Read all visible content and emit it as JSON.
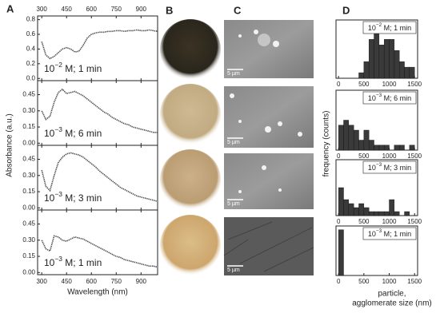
{
  "panel_labels": [
    "A",
    "B",
    "C",
    "D"
  ],
  "scale_bars": [
    "5 µm",
    "5 µm",
    "5 µm",
    "5 µm"
  ],
  "chart_data": [
    {
      "type": "line",
      "annotation": {
        "base": "10",
        "exponent": "−2",
        "text": " M; 1 min"
      },
      "ylabel": "Absorbance (a.u.)",
      "top_tick_labels": true,
      "color": "#555555",
      "x": [
        300,
        325,
        350,
        375,
        400,
        425,
        450,
        475,
        500,
        525,
        550,
        575,
        600,
        625,
        650,
        675,
        700,
        725,
        750,
        775,
        800,
        825,
        850,
        875,
        900,
        925,
        950,
        975,
        1000
      ],
      "values": [
        0.5,
        0.32,
        0.27,
        0.3,
        0.35,
        0.4,
        0.42,
        0.4,
        0.36,
        0.37,
        0.45,
        0.55,
        0.6,
        0.62,
        0.63,
        0.63,
        0.64,
        0.64,
        0.65,
        0.65,
        0.64,
        0.65,
        0.65,
        0.66,
        0.65,
        0.65,
        0.66,
        0.65,
        0.64
      ],
      "xlim": [
        275,
        1000
      ],
      "xticks": [
        300,
        450,
        600,
        750,
        900
      ],
      "ylim": [
        -0.03,
        0.85
      ],
      "yticks": [
        {
          "value": 0,
          "label": "0.0"
        },
        {
          "value": 0.2,
          "label": "0.2"
        },
        {
          "value": 0.4,
          "label": "0.4"
        },
        {
          "value": 0.6,
          "label": "0.6"
        },
        {
          "value": 0.8,
          "label": "0.8"
        }
      ]
    },
    {
      "type": "line",
      "annotation": {
        "base": "10",
        "exponent": "−3",
        "text": " M; 6 min"
      },
      "color": "#555555",
      "x": [
        300,
        325,
        350,
        375,
        400,
        425,
        450,
        475,
        500,
        525,
        550,
        575,
        600,
        625,
        650,
        675,
        700,
        725,
        750,
        775,
        800,
        825,
        850,
        875,
        900,
        925,
        950,
        975,
        1000
      ],
      "values": [
        0.3,
        0.22,
        0.25,
        0.38,
        0.47,
        0.5,
        0.46,
        0.47,
        0.48,
        0.46,
        0.44,
        0.41,
        0.38,
        0.35,
        0.32,
        0.29,
        0.27,
        0.24,
        0.22,
        0.2,
        0.18,
        0.17,
        0.15,
        0.14,
        0.13,
        0.12,
        0.11,
        0.1,
        0.1
      ],
      "xlim": [
        275,
        1000
      ],
      "xticks": [
        300,
        450,
        600,
        750,
        900
      ],
      "ylim": [
        -0.02,
        0.58
      ],
      "yticks": [
        {
          "value": 0,
          "label": "0.00"
        },
        {
          "value": 0.15,
          "label": "0.15"
        },
        {
          "value": 0.3,
          "label": "0.30"
        },
        {
          "value": 0.45,
          "label": "0.45"
        }
      ]
    },
    {
      "type": "line",
      "annotation": {
        "base": "10",
        "exponent": "−3",
        "text": " M; 3 min"
      },
      "color": "#555555",
      "x": [
        300,
        325,
        350,
        375,
        400,
        425,
        450,
        475,
        500,
        525,
        550,
        575,
        600,
        625,
        650,
        675,
        700,
        725,
        750,
        775,
        800,
        825,
        850,
        875,
        900,
        925,
        950,
        975,
        1000
      ],
      "values": [
        0.35,
        0.2,
        0.16,
        0.3,
        0.42,
        0.47,
        0.5,
        0.51,
        0.5,
        0.49,
        0.47,
        0.44,
        0.41,
        0.38,
        0.34,
        0.31,
        0.28,
        0.25,
        0.22,
        0.19,
        0.17,
        0.15,
        0.13,
        0.11,
        0.1,
        0.09,
        0.08,
        0.07,
        0.06
      ],
      "xlim": [
        275,
        1000
      ],
      "xticks": [
        300,
        450,
        600,
        750,
        900
      ],
      "ylim": [
        -0.02,
        0.58
      ],
      "yticks": [
        {
          "value": 0,
          "label": "0.00"
        },
        {
          "value": 0.15,
          "label": "0.15"
        },
        {
          "value": 0.3,
          "label": "0.30"
        },
        {
          "value": 0.45,
          "label": "0.45"
        }
      ]
    },
    {
      "type": "line",
      "annotation": {
        "base": "10",
        "exponent": "−3",
        "text": " M; 1 min"
      },
      "color": "#555555",
      "xlabel": "Wavelength (nm)",
      "bottom_tick_labels": true,
      "x": [
        300,
        325,
        350,
        375,
        400,
        425,
        450,
        475,
        500,
        525,
        550,
        575,
        600,
        625,
        650,
        675,
        700,
        725,
        750,
        775,
        800,
        825,
        850,
        875,
        900,
        925,
        950,
        975,
        1000
      ],
      "values": [
        0.3,
        0.22,
        0.2,
        0.34,
        0.33,
        0.3,
        0.29,
        0.31,
        0.33,
        0.32,
        0.31,
        0.29,
        0.27,
        0.25,
        0.23,
        0.21,
        0.19,
        0.17,
        0.15,
        0.14,
        0.12,
        0.11,
        0.1,
        0.09,
        0.08,
        0.07,
        0.06,
        0.06,
        0.05
      ],
      "xlim": [
        275,
        1000
      ],
      "xticks": [
        300,
        450,
        600,
        750,
        900
      ],
      "ylim": [
        -0.02,
        0.58
      ],
      "yticks": [
        {
          "value": 0,
          "label": "0.00"
        },
        {
          "value": 0.15,
          "label": "0.15"
        },
        {
          "value": 0.3,
          "label": "0.30"
        },
        {
          "value": 0.45,
          "label": "0.45"
        }
      ]
    },
    {
      "type": "histogram",
      "annotation": {
        "base": "10",
        "exponent": "−2",
        "text": " M; 1 min"
      },
      "color": "#3a3a3a",
      "ylabel": "frequency (counts)",
      "bins": [
        0,
        100,
        200,
        300,
        400,
        500,
        600,
        700,
        800,
        900,
        1000,
        1100,
        1200,
        1300,
        1400,
        1500
      ],
      "values": [
        0,
        0,
        0,
        0,
        1,
        3,
        7,
        9,
        6,
        7,
        7,
        5,
        3,
        2,
        2
      ],
      "xlim": [
        -50,
        1560
      ],
      "xticks": [
        0,
        500,
        1000,
        1500
      ],
      "ylim": [
        0,
        10.5
      ]
    },
    {
      "type": "histogram",
      "annotation": {
        "base": "10",
        "exponent": "−3",
        "text": " M; 6 min"
      },
      "color": "#3a3a3a",
      "bins": [
        0,
        100,
        200,
        300,
        400,
        500,
        600,
        700,
        800,
        900,
        1000,
        1100,
        1200,
        1300,
        1400,
        1500
      ],
      "values": [
        5,
        6,
        5,
        4,
        2,
        4,
        2,
        1,
        1,
        1,
        0,
        1,
        1,
        0,
        1
      ],
      "xlim": [
        -50,
        1560
      ],
      "xticks": [
        0,
        500,
        1000,
        1500
      ],
      "ylim": [
        0,
        12
      ]
    },
    {
      "type": "histogram",
      "annotation": {
        "base": "10",
        "exponent": "−3",
        "text": " M; 3 min"
      },
      "color": "#3a3a3a",
      "bins": [
        0,
        100,
        200,
        300,
        400,
        500,
        600,
        700,
        800,
        900,
        1000,
        1100,
        1200,
        1300,
        1400,
        1500
      ],
      "values": [
        7,
        4,
        3,
        2,
        3,
        2,
        1,
        1,
        1,
        1,
        4,
        1,
        0,
        1,
        0
      ],
      "xlim": [
        -50,
        1560
      ],
      "xticks": [
        0,
        500,
        1000,
        1500
      ],
      "ylim": [
        0,
        14
      ]
    },
    {
      "type": "histogram",
      "annotation": {
        "base": "10",
        "exponent": "−3",
        "text": " M; 1 min"
      },
      "color": "#3a3a3a",
      "xlabel": [
        "particle,",
        "agglomerate size (nm)"
      ],
      "bins": [
        0,
        100,
        200,
        300,
        400,
        500,
        600,
        700,
        800,
        900,
        1000,
        1100,
        1200,
        1300,
        1400,
        1500
      ],
      "values": [
        12,
        0,
        0,
        0,
        0,
        0,
        0,
        0,
        0,
        0,
        0,
        0,
        0,
        0,
        0
      ],
      "xlim": [
        -50,
        1560
      ],
      "xticks": [
        0,
        500,
        1000,
        1500
      ],
      "ylim": [
        0,
        13
      ]
    }
  ]
}
